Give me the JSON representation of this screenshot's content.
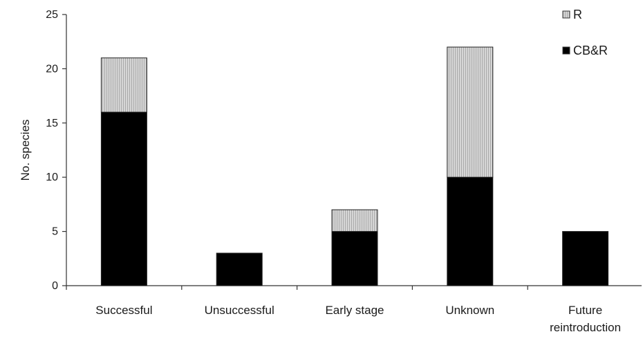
{
  "chart_data": {
    "type": "bar",
    "stacked": true,
    "categories": [
      [
        "Successful"
      ],
      [
        "Unsuccessful"
      ],
      [
        "Early stage"
      ],
      [
        "Unknown"
      ],
      [
        "Future",
        "reintroduction"
      ]
    ],
    "series": [
      {
        "name": "CB&R",
        "values": [
          16,
          3,
          5,
          10,
          5
        ],
        "color": "#000000",
        "pattern": "solid"
      },
      {
        "name": "R",
        "values": [
          5,
          0,
          2,
          12,
          0
        ],
        "color": "#c8c8c8",
        "pattern": "vertical-hatch"
      }
    ],
    "legend_order": [
      1,
      0
    ],
    "title": "",
    "xlabel": "",
    "ylabel": "No. species",
    "ylim": [
      0,
      25
    ],
    "yticks": [
      0,
      5,
      10,
      15,
      20,
      25
    ],
    "grid": false,
    "legend_position": "top-right"
  }
}
